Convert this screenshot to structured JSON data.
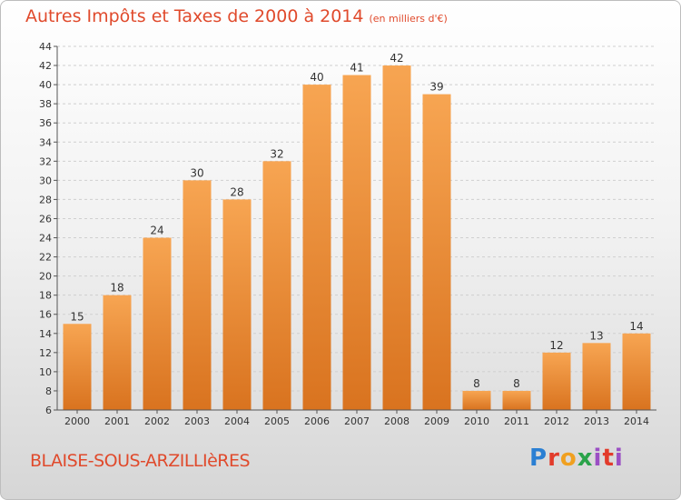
{
  "title": "Autres Impôts et Taxes de 2000 à 2014",
  "unit": "(en milliers d'€)",
  "town": "BLAISE-SOUS-ARZILLIèRES",
  "logo": "Proxiti",
  "colors": {
    "title": "#e04a2c",
    "bar_light": "#f7a552",
    "bar_dark": "#d9731f",
    "grid": "#cfcfcf"
  },
  "chart_data": {
    "type": "bar",
    "categories": [
      "2000",
      "2001",
      "2002",
      "2003",
      "2004",
      "2005",
      "2006",
      "2007",
      "2008",
      "2009",
      "2010",
      "2011",
      "2012",
      "2013",
      "2014"
    ],
    "values": [
      15,
      18,
      24,
      30,
      28,
      32,
      40,
      41,
      42,
      39,
      8,
      8,
      12,
      13,
      14
    ],
    "title": "Autres Impôts et Taxes de 2000 à 2014",
    "ylim": [
      6,
      44
    ],
    "yticks": [
      6,
      8,
      10,
      12,
      14,
      16,
      18,
      20,
      22,
      24,
      26,
      28,
      30,
      32,
      34,
      36,
      38,
      40,
      42,
      44
    ],
    "grid": true,
    "data_labels": true
  }
}
